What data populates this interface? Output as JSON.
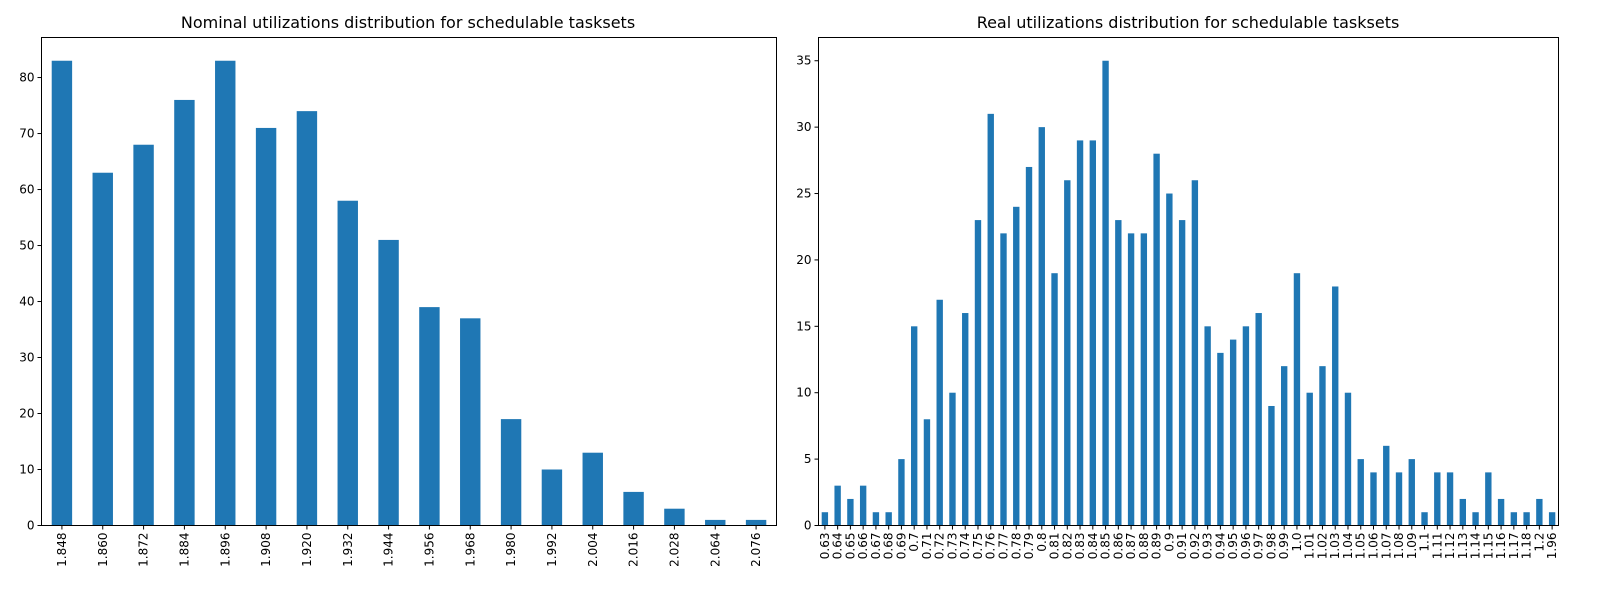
{
  "chart_data": [
    {
      "type": "bar",
      "title": "Nominal utilizations distribution for schedulable tasksets",
      "xlabel": "",
      "ylabel": "",
      "categories": [
        "1.848",
        "1.860",
        "1.872",
        "1.884",
        "1.896",
        "1.908",
        "1.920",
        "1.932",
        "1.944",
        "1.956",
        "1.968",
        "1.980",
        "1.992",
        "2.004",
        "2.016",
        "2.028",
        "2.064",
        "2.076"
      ],
      "values": [
        83,
        63,
        68,
        76,
        83,
        71,
        74,
        58,
        51,
        39,
        37,
        19,
        10,
        13,
        6,
        3,
        1,
        1
      ],
      "ylim": [
        0,
        87.15
      ],
      "yticks": [
        "0",
        "10",
        "20",
        "30",
        "40",
        "50",
        "60",
        "70",
        "80"
      ],
      "grid": false,
      "bar_color": "#1f77b4"
    },
    {
      "type": "bar",
      "title": "Real utilizations distribution for schedulable tasksets",
      "xlabel": "",
      "ylabel": "",
      "categories": [
        "0.63",
        "0.64",
        "0.65",
        "0.66",
        "0.67",
        "0.68",
        "0.69",
        "0.7",
        "0.71",
        "0.72",
        "0.73",
        "0.74",
        "0.75",
        "0.76",
        "0.77",
        "0.78",
        "0.79",
        "0.8",
        "0.81",
        "0.82",
        "0.83",
        "0.84",
        "0.85",
        "0.86",
        "0.87",
        "0.88",
        "0.89",
        "0.9",
        "0.91",
        "0.92",
        "0.93",
        "0.94",
        "0.95",
        "0.96",
        "0.97",
        "0.98",
        "0.99",
        "1.0",
        "1.01",
        "1.02",
        "1.03",
        "1.04",
        "1.05",
        "1.06",
        "1.07",
        "1.08",
        "1.09",
        "1.1",
        "1.11",
        "1.12",
        "1.13",
        "1.14",
        "1.15",
        "1.16",
        "1.17",
        "1.18",
        "1.2",
        "1.96"
      ],
      "values": [
        1,
        3,
        2,
        3,
        1,
        1,
        5,
        15,
        8,
        17,
        10,
        16,
        23,
        31,
        22,
        24,
        27,
        30,
        19,
        26,
        29,
        29,
        35,
        23,
        22,
        22,
        28,
        25,
        23,
        26,
        15,
        13,
        14,
        15,
        16,
        9,
        12,
        19,
        10,
        12,
        18,
        10,
        5,
        4,
        6,
        4,
        5,
        1,
        4,
        4,
        2,
        1,
        4,
        2,
        1,
        1,
        2,
        1
      ],
      "ylim": [
        0,
        36.75
      ],
      "yticks": [
        "0",
        "5",
        "10",
        "15",
        "20",
        "25",
        "30",
        "35"
      ],
      "grid": false,
      "bar_color": "#1f77b4"
    }
  ]
}
